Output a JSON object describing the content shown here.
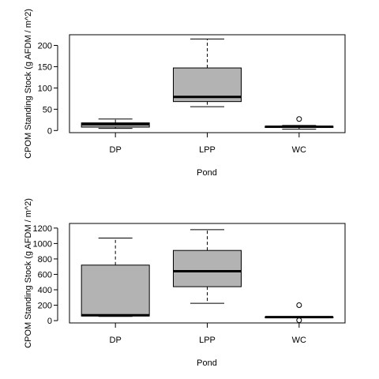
{
  "chart_data": [
    {
      "type": "boxplot",
      "xlabel": "Pond",
      "ylabel": "CPOM Standing Stock (g AFDM / m^2)",
      "ylim": [
        -5,
        225
      ],
      "yticks": [
        0,
        50,
        100,
        150,
        200
      ],
      "categories": [
        "DP",
        "LPP",
        "WC"
      ],
      "boxes": [
        {
          "name": "DP",
          "whisker_low": 5,
          "q1": 8,
          "median": 15,
          "q3": 18,
          "whisker_high": 27,
          "outliers": []
        },
        {
          "name": "LPP",
          "whisker_low": 56,
          "q1": 68,
          "median": 79,
          "q3": 147,
          "whisker_high": 215,
          "outliers": []
        },
        {
          "name": "WC",
          "whisker_low": 3,
          "q1": 7,
          "median": 9,
          "q3": 10,
          "whisker_high": 12,
          "outliers": [
            27
          ]
        }
      ]
    },
    {
      "type": "boxplot",
      "xlabel": "Pond",
      "ylabel": "CPOM Standing Stock (g AFDM / m^2)",
      "ylim": [
        -30,
        1260
      ],
      "yticks": [
        0,
        200,
        400,
        600,
        800,
        1000,
        1200
      ],
      "categories": [
        "DP",
        "LPP",
        "WC"
      ],
      "boxes": [
        {
          "name": "DP",
          "whisker_low": 55,
          "q1": 60,
          "median": 70,
          "q3": 720,
          "whisker_high": 1070,
          "outliers": []
        },
        {
          "name": "LPP",
          "whisker_low": 225,
          "q1": 440,
          "median": 640,
          "q3": 910,
          "whisker_high": 1180,
          "outliers": []
        },
        {
          "name": "WC",
          "whisker_low": 40,
          "q1": 42,
          "median": 45,
          "q3": 48,
          "whisker_high": 50,
          "outliers": [
            200,
            5
          ]
        }
      ]
    }
  ]
}
